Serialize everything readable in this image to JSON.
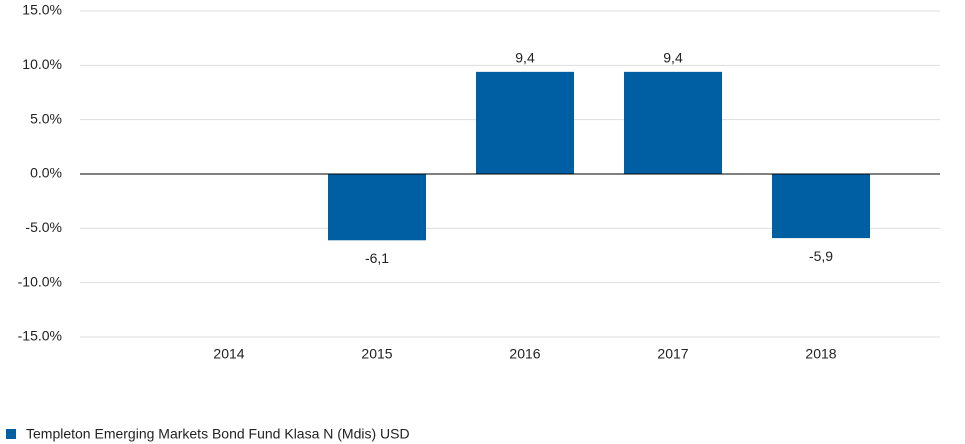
{
  "chart_data": {
    "type": "bar",
    "categories": [
      "2014",
      "2015",
      "2016",
      "2017",
      "2018"
    ],
    "series": [
      {
        "name": "Templeton Emerging Markets Bond Fund Klasa N (Mdis) USD",
        "color": "#005ea2",
        "values": [
          null,
          -6.1,
          9.4,
          9.4,
          -5.9
        ],
        "value_labels": [
          null,
          "-6,1",
          "9,4",
          "9,4",
          "-5,9"
        ]
      }
    ],
    "ylim": [
      -15,
      15
    ],
    "yticks": [
      {
        "value": -15,
        "label": "-15.0%"
      },
      {
        "value": -10,
        "label": "-10.0%"
      },
      {
        "value": -5,
        "label": "-5.0%"
      },
      {
        "value": 0,
        "label": "0.0%"
      },
      {
        "value": 5,
        "label": "5.0%"
      },
      {
        "value": 10,
        "label": "10.0%"
      },
      {
        "value": 15,
        "label": "15.0%"
      }
    ],
    "grid": true
  }
}
